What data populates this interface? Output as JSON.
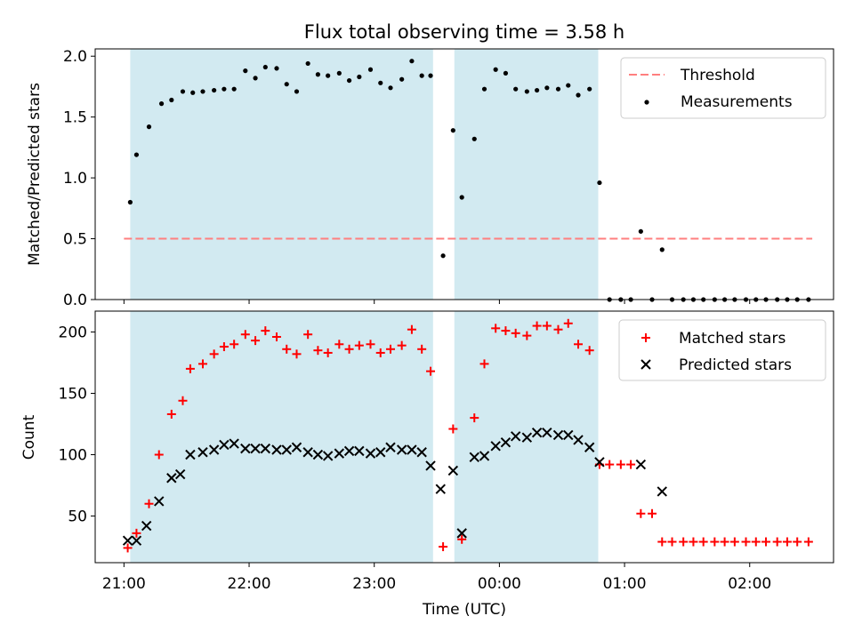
{
  "title": "Flux total observing time = 3.58 h",
  "colors": {
    "threshold": "#ff7f7f",
    "measurements": "#000000",
    "matched": "#ff0000",
    "predicted": "#000000",
    "observing_band": "#add8e6"
  },
  "chart_data": [
    {
      "type": "scatter",
      "ylabel": "Matched/Predicted stars",
      "ylim": [
        0,
        2.06
      ],
      "xlim": [
        20.77,
        26.67
      ],
      "yticks": [
        0.0,
        0.5,
        1.0,
        1.5,
        2.0
      ],
      "ytick_labels": [
        "0.0",
        "0.5",
        "1.0",
        "1.5",
        "2.0"
      ],
      "legend_position": "top-right",
      "observing_bands": [
        [
          21.05,
          23.47
        ],
        [
          23.64,
          24.79
        ]
      ],
      "threshold": {
        "name": "Threshold",
        "y": 0.5,
        "x_range": [
          21.0,
          26.5
        ]
      },
      "series": [
        {
          "name": "Measurements",
          "points": [
            [
              21.05,
              0.8
            ],
            [
              21.1,
              1.19
            ],
            [
              21.2,
              1.42
            ],
            [
              21.3,
              1.61
            ],
            [
              21.38,
              1.64
            ],
            [
              21.47,
              1.71
            ],
            [
              21.55,
              1.7
            ],
            [
              21.63,
              1.71
            ],
            [
              21.72,
              1.72
            ],
            [
              21.8,
              1.73
            ],
            [
              21.88,
              1.73
            ],
            [
              21.97,
              1.88
            ],
            [
              22.05,
              1.82
            ],
            [
              22.13,
              1.91
            ],
            [
              22.22,
              1.9
            ],
            [
              22.3,
              1.77
            ],
            [
              22.38,
              1.71
            ],
            [
              22.47,
              1.94
            ],
            [
              22.55,
              1.85
            ],
            [
              22.63,
              1.84
            ],
            [
              22.72,
              1.86
            ],
            [
              22.8,
              1.8
            ],
            [
              22.88,
              1.83
            ],
            [
              22.97,
              1.89
            ],
            [
              23.05,
              1.78
            ],
            [
              23.13,
              1.74
            ],
            [
              23.22,
              1.81
            ],
            [
              23.3,
              1.96
            ],
            [
              23.38,
              1.84
            ],
            [
              23.45,
              1.84
            ],
            [
              23.55,
              0.36
            ],
            [
              23.63,
              1.39
            ],
            [
              23.7,
              0.84
            ],
            [
              23.8,
              1.32
            ],
            [
              23.88,
              1.73
            ],
            [
              23.97,
              1.89
            ],
            [
              24.05,
              1.86
            ],
            [
              24.13,
              1.73
            ],
            [
              24.22,
              1.71
            ],
            [
              24.3,
              1.72
            ],
            [
              24.38,
              1.74
            ],
            [
              24.47,
              1.73
            ],
            [
              24.55,
              1.76
            ],
            [
              24.63,
              1.68
            ],
            [
              24.72,
              1.73
            ],
            [
              24.8,
              0.96
            ],
            [
              24.88,
              0.0
            ],
            [
              24.97,
              0.0
            ],
            [
              25.05,
              0.0
            ],
            [
              25.13,
              0.56
            ],
            [
              25.22,
              0.0
            ],
            [
              25.3,
              0.41
            ],
            [
              25.38,
              0.0
            ],
            [
              25.47,
              0.0
            ],
            [
              25.55,
              0.0
            ],
            [
              25.63,
              0.0
            ],
            [
              25.72,
              0.0
            ],
            [
              25.8,
              0.0
            ],
            [
              25.88,
              0.0
            ],
            [
              25.97,
              0.0
            ],
            [
              26.05,
              0.0
            ],
            [
              26.13,
              0.0
            ],
            [
              26.22,
              0.0
            ],
            [
              26.3,
              0.0
            ],
            [
              26.38,
              0.0
            ],
            [
              26.47,
              0.0
            ]
          ]
        }
      ]
    },
    {
      "type": "scatter",
      "xlabel": "Time (UTC)",
      "ylabel": "Count",
      "ylim": [
        12,
        217
      ],
      "xlim": [
        20.77,
        26.67
      ],
      "yticks": [
        50,
        100,
        150,
        200
      ],
      "ytick_labels": [
        "50",
        "100",
        "150",
        "200"
      ],
      "xticks": [
        21,
        22,
        23,
        24,
        25,
        26
      ],
      "xtick_labels": [
        "21:00",
        "22:00",
        "23:00",
        "00:00",
        "01:00",
        "02:00"
      ],
      "legend_position": "top-right",
      "observing_bands": [
        [
          21.05,
          23.47
        ],
        [
          23.64,
          24.79
        ]
      ],
      "series": [
        {
          "name": "Matched stars",
          "marker": "plus",
          "points": [
            [
              21.03,
              24
            ],
            [
              21.1,
              36
            ],
            [
              21.2,
              60
            ],
            [
              21.28,
              100
            ],
            [
              21.38,
              133
            ],
            [
              21.47,
              144
            ],
            [
              21.53,
              170
            ],
            [
              21.63,
              174
            ],
            [
              21.72,
              182
            ],
            [
              21.8,
              188
            ],
            [
              21.88,
              190
            ],
            [
              21.97,
              198
            ],
            [
              22.05,
              193
            ],
            [
              22.13,
              201
            ],
            [
              22.22,
              196
            ],
            [
              22.3,
              186
            ],
            [
              22.38,
              182
            ],
            [
              22.47,
              198
            ],
            [
              22.55,
              185
            ],
            [
              22.63,
              183
            ],
            [
              22.72,
              190
            ],
            [
              22.8,
              186
            ],
            [
              22.88,
              189
            ],
            [
              22.97,
              190
            ],
            [
              23.05,
              183
            ],
            [
              23.13,
              186
            ],
            [
              23.22,
              189
            ],
            [
              23.3,
              202
            ],
            [
              23.38,
              186
            ],
            [
              23.45,
              168
            ],
            [
              23.55,
              25
            ],
            [
              23.63,
              121
            ],
            [
              23.7,
              31
            ],
            [
              23.8,
              130
            ],
            [
              23.88,
              174
            ],
            [
              23.97,
              203
            ],
            [
              24.05,
              201
            ],
            [
              24.13,
              199
            ],
            [
              24.22,
              197
            ],
            [
              24.3,
              205
            ],
            [
              24.38,
              205
            ],
            [
              24.47,
              202
            ],
            [
              24.55,
              207
            ],
            [
              24.63,
              190
            ],
            [
              24.72,
              185
            ],
            [
              24.8,
              92
            ],
            [
              24.88,
              92
            ],
            [
              24.97,
              92
            ],
            [
              25.05,
              92
            ],
            [
              25.13,
              52
            ],
            [
              25.22,
              52
            ],
            [
              25.3,
              29
            ],
            [
              25.38,
              29
            ],
            [
              25.47,
              29
            ],
            [
              25.55,
              29
            ],
            [
              25.63,
              29
            ],
            [
              25.72,
              29
            ],
            [
              25.8,
              29
            ],
            [
              25.88,
              29
            ],
            [
              25.97,
              29
            ],
            [
              26.05,
              29
            ],
            [
              26.13,
              29
            ],
            [
              26.22,
              29
            ],
            [
              26.3,
              29
            ],
            [
              26.38,
              29
            ],
            [
              26.47,
              29
            ]
          ]
        },
        {
          "name": "Predicted stars",
          "marker": "x",
          "points": [
            [
              21.03,
              30
            ],
            [
              21.1,
              30
            ],
            [
              21.18,
              42
            ],
            [
              21.28,
              62
            ],
            [
              21.38,
              81
            ],
            [
              21.45,
              84
            ],
            [
              21.53,
              100
            ],
            [
              21.63,
              102
            ],
            [
              21.72,
              104
            ],
            [
              21.8,
              108
            ],
            [
              21.88,
              109
            ],
            [
              21.97,
              105
            ],
            [
              22.05,
              105
            ],
            [
              22.13,
              105
            ],
            [
              22.22,
              104
            ],
            [
              22.3,
              104
            ],
            [
              22.38,
              106
            ],
            [
              22.47,
              102
            ],
            [
              22.55,
              100
            ],
            [
              22.63,
              99
            ],
            [
              22.72,
              101
            ],
            [
              22.8,
              103
            ],
            [
              22.88,
              103
            ],
            [
              22.97,
              101
            ],
            [
              23.05,
              102
            ],
            [
              23.13,
              106
            ],
            [
              23.22,
              104
            ],
            [
              23.3,
              104
            ],
            [
              23.38,
              102
            ],
            [
              23.45,
              91
            ],
            [
              23.53,
              72
            ],
            [
              23.63,
              87
            ],
            [
              23.7,
              36
            ],
            [
              23.8,
              98
            ],
            [
              23.88,
              99
            ],
            [
              23.97,
              107
            ],
            [
              24.05,
              110
            ],
            [
              24.13,
              115
            ],
            [
              24.22,
              114
            ],
            [
              24.3,
              118
            ],
            [
              24.38,
              118
            ],
            [
              24.47,
              116
            ],
            [
              24.55,
              116
            ],
            [
              24.63,
              112
            ],
            [
              24.72,
              106
            ],
            [
              24.8,
              94
            ],
            [
              25.13,
              92
            ],
            [
              25.3,
              70
            ]
          ]
        }
      ]
    }
  ]
}
